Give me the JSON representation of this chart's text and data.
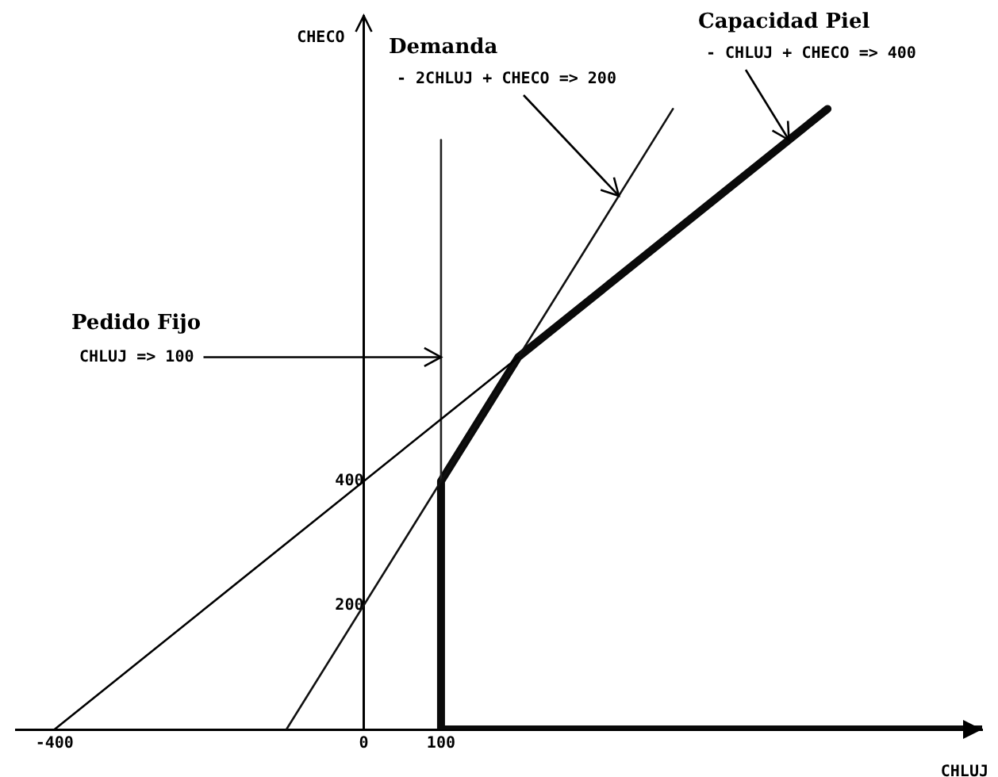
{
  "chart_data": {
    "type": "line",
    "xlabel": "CHLUJ",
    "ylabel": "CHECO",
    "xlim": [
      -450,
      800
    ],
    "ylim": [
      0,
      1150
    ],
    "xticks": [
      -400,
      0,
      100
    ],
    "yticks": [
      200,
      400
    ],
    "legend": false,
    "marker": "none",
    "line_style": "solid",
    "series": [
      {
        "color": "#000000",
        "x": [
          -400,
          200
        ],
        "values": [
          0,
          600
        ]
      },
      {
        "color": "#111111",
        "x": [
          -100,
          400
        ],
        "values": [
          0,
          1000
        ]
      },
      {
        "color": "#222222",
        "x": [
          100,
          100
        ],
        "values": [
          400,
          950
        ]
      },
      {
        "color": "#0a0a0a",
        "x": [
          800,
          100,
          100,
          200,
          600
        ],
        "values": [
          0,
          0,
          400,
          600,
          1000
        ]
      }
    ],
    "annotations": [
      "Capacidad Piel",
      {
        "text": "- CHLUJ + CHECO => 400",
        "x": 550,
        "y": 950
      },
      "Demanda",
      {
        "text": "- 2CHLUJ + CHECO => 200",
        "x": 330,
        "y": 860
      },
      "Pedido Fijo",
      {
        "text": "CHLUJ => 100",
        "x": 100,
        "y": 600
      }
    ]
  }
}
